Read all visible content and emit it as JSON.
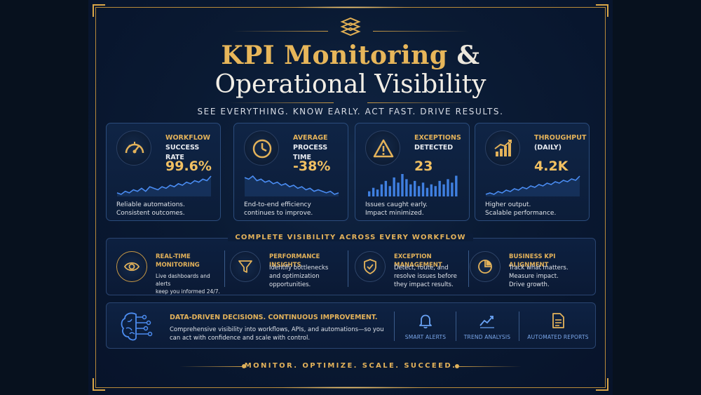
{
  "header": {
    "title_line1": "KPI Monitoring",
    "title_amp": "&",
    "title_line2": "Operational Visibility",
    "tagline": "SEE EVERYTHING. KNOW EARLY. ACT FAST. DRIVE RESULTS."
  },
  "kpis": [
    {
      "label1": "WORKFLOW",
      "label2": "SUCCESS RATE",
      "value": "99.6%",
      "desc1": "Reliable automations.",
      "desc2": "Consistent outcomes.",
      "icon": "speedometer-icon",
      "spark": [
        5,
        4,
        6,
        5,
        7,
        6,
        8,
        6,
        9,
        8,
        7,
        9,
        8,
        10,
        9,
        11,
        10,
        12,
        11,
        13,
        12,
        14,
        13,
        16
      ]
    },
    {
      "label1": "AVERAGE",
      "label2": "PROCESS TIME",
      "value": "-38%",
      "desc1": "End-to-end efficiency",
      "desc2": "continues to improve.",
      "icon": "clock-icon",
      "spark": [
        16,
        15,
        17,
        14,
        15,
        13,
        14,
        12,
        13,
        11,
        12,
        10,
        11,
        9,
        10,
        8,
        9,
        7,
        8,
        7,
        6,
        7,
        5,
        6
      ]
    },
    {
      "label1": "EXCEPTIONS",
      "label2": "DETECTED",
      "value": "23",
      "desc1": "Issues caught early.",
      "desc2": "Impact minimized.",
      "icon": "warning-icon",
      "bars": [
        3,
        5,
        4,
        7,
        9,
        6,
        11,
        8,
        13,
        10,
        7,
        9,
        6,
        8,
        5,
        7,
        6,
        9,
        7,
        10,
        8,
        12
      ]
    },
    {
      "label1": "THROUGHPUT",
      "label2": "(DAILY)",
      "value": "4.2K",
      "desc1": "Higher output.",
      "desc2": "Scalable performance.",
      "icon": "bar-chart-icon",
      "spark": [
        4,
        5,
        4,
        6,
        5,
        7,
        6,
        8,
        7,
        9,
        8,
        10,
        9,
        11,
        10,
        12,
        11,
        13,
        12,
        14,
        13,
        15,
        14,
        17
      ]
    }
  ],
  "section_title": "COMPLETE VISIBILITY ACROSS EVERY WORKFLOW",
  "features": [
    {
      "title": "REAL-TIME MONITORING",
      "desc": [
        "Live dashboards and alerts",
        "keep you informed 24/7."
      ],
      "icon": "eye-icon"
    },
    {
      "title": "PERFORMANCE INSIGHTS",
      "desc": [
        "Identify bottlenecks",
        "and optimization",
        "opportunities."
      ],
      "icon": "filter-icon"
    },
    {
      "title": "EXCEPTION MANAGEMENT",
      "desc": [
        "Detect, route, and",
        "resolve issues before",
        "they impact results."
      ],
      "icon": "shield-check-icon"
    },
    {
      "title": "BUSINESS KPI ALIGNMENT",
      "desc": [
        "Track what matters.",
        "Measure impact.",
        "Drive growth."
      ],
      "icon": "pie-chart-icon"
    }
  ],
  "bottom": {
    "title": "DATA-DRIVEN DECISIONS. CONTINUOUS IMPROVEMENT.",
    "desc": "Comprehensive visibility into workflows, APIs, and automations—so you can act with confidence and scale with control.",
    "items": [
      {
        "label": "SMART ALERTS",
        "icon": "bell-icon"
      },
      {
        "label": "TREND ANALYSIS",
        "icon": "trend-icon"
      },
      {
        "label": "AUTOMATED REPORTS",
        "icon": "document-icon"
      }
    ]
  },
  "footer": "MONITOR. OPTIMIZE. SCALE. SUCCEED.",
  "colors": {
    "gold": "#e3b25a",
    "navy": "#0a1a33",
    "accent_blue": "#3f7fe0"
  }
}
